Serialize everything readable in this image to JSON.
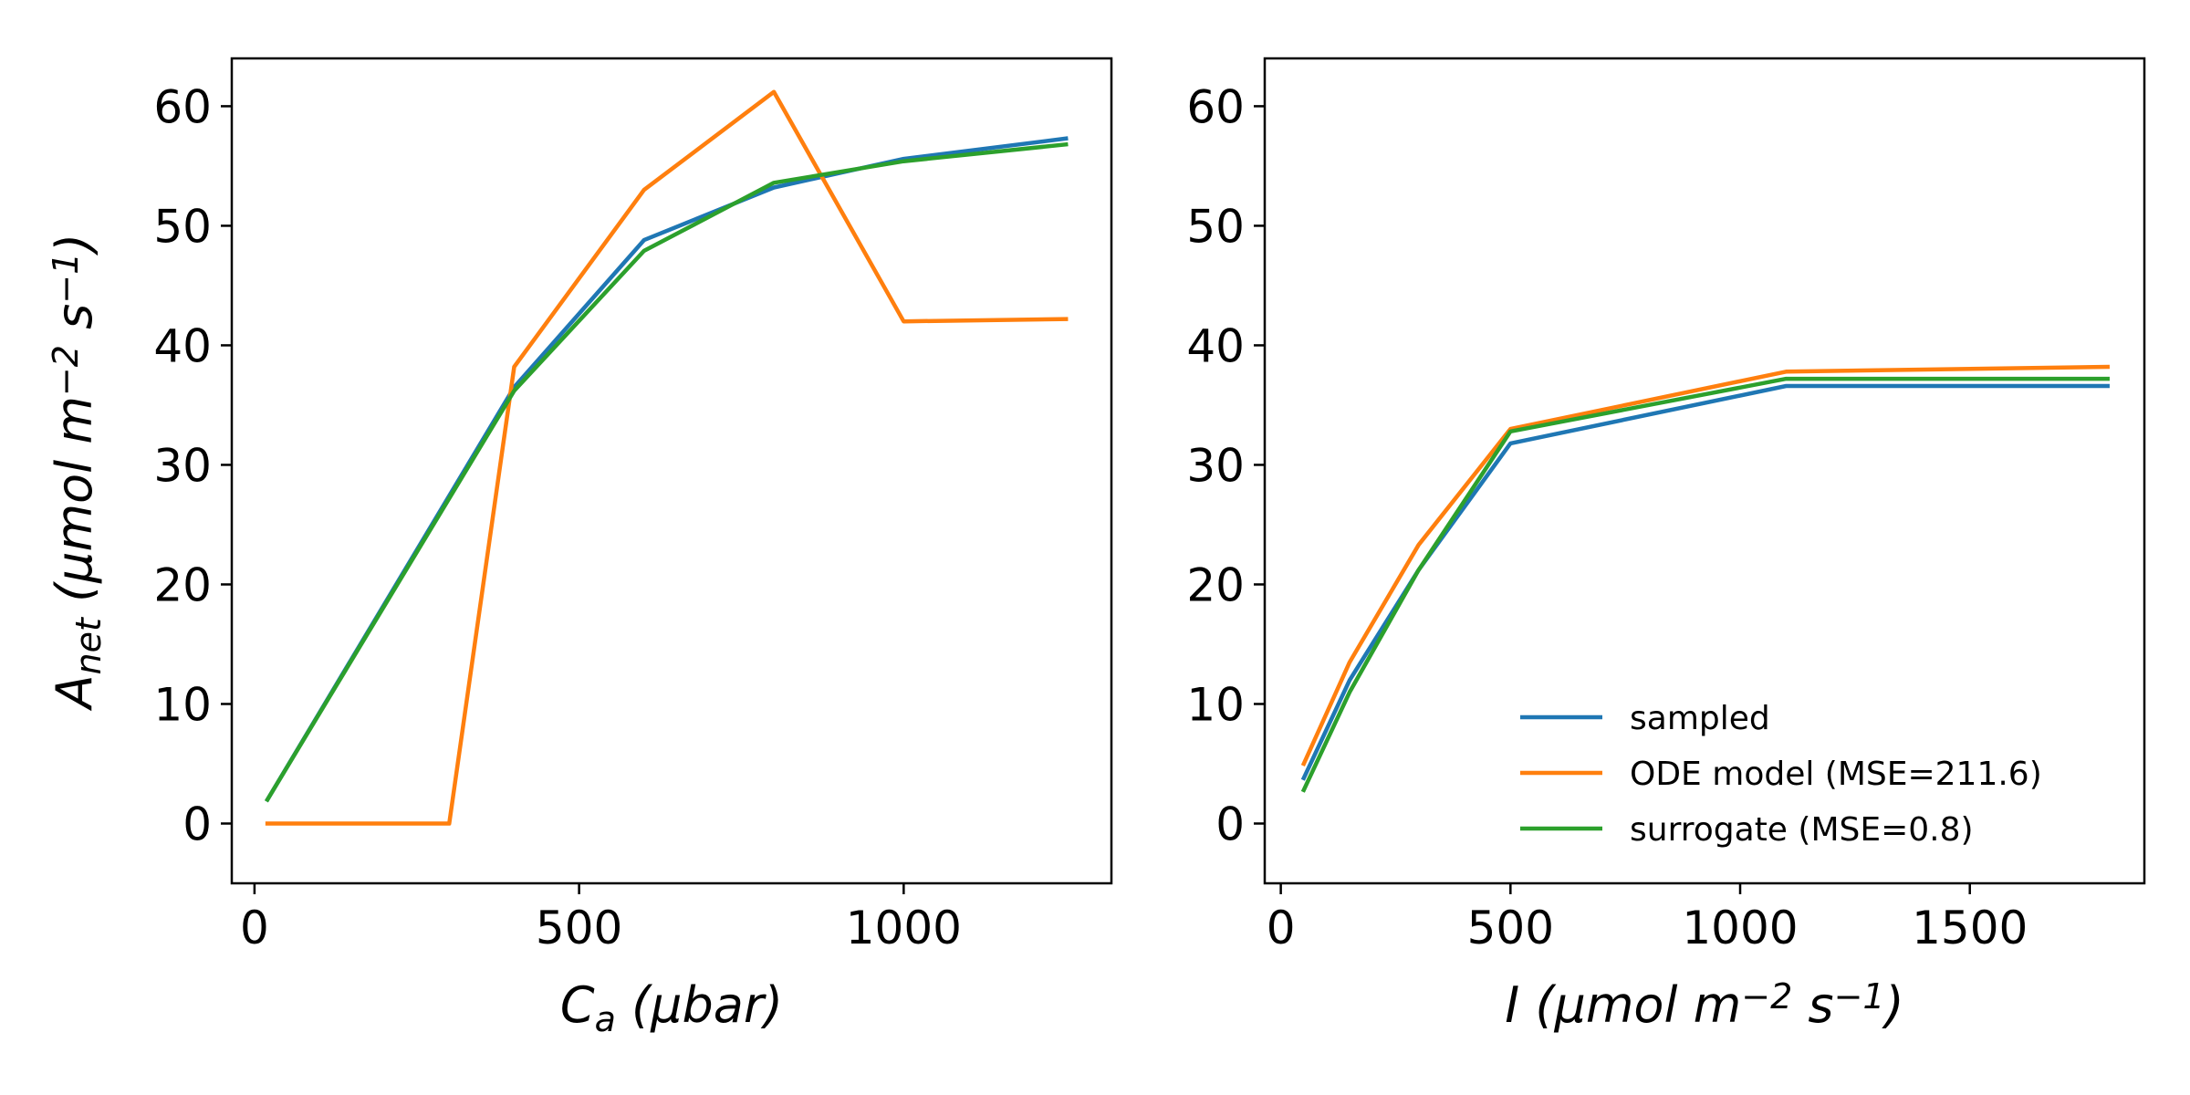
{
  "colors": {
    "sampled": "#1f77b4",
    "ode": "#ff7f0e",
    "surrogate": "#2ca02c"
  },
  "chart_data": [
    {
      "type": "line",
      "xlabel": {
        "base": "C",
        "sub": "a",
        "rest": " (μbar)"
      },
      "ylabel": {
        "base": "A",
        "sub": "net",
        "rest": " (μmol m",
        "exp1": "−2",
        "mid": " s",
        "exp2": "−1",
        "end": ")"
      },
      "xlim": [
        -35,
        1320
      ],
      "ylim": [
        -5,
        64
      ],
      "xticks": [
        0,
        500,
        1000
      ],
      "yticks": [
        0,
        10,
        20,
        30,
        40,
        50,
        60
      ],
      "series": [
        {
          "key": "sampled",
          "x": [
            20,
            400,
            600,
            800,
            1000,
            1250
          ],
          "y": [
            2,
            36.5,
            48.8,
            53.2,
            55.6,
            57.3
          ]
        },
        {
          "key": "ode",
          "x": [
            20,
            300,
            400,
            600,
            800,
            1000,
            1250
          ],
          "y": [
            0,
            0,
            38.2,
            53,
            61.2,
            42,
            42.2
          ]
        },
        {
          "key": "surrogate",
          "x": [
            20,
            400,
            600,
            800,
            1000,
            1250
          ],
          "y": [
            2,
            36.2,
            47.9,
            53.6,
            55.4,
            56.8
          ]
        }
      ]
    },
    {
      "type": "line",
      "xlabel": {
        "base": "I",
        "rest": " (μmol m",
        "exp1": "−2",
        "mid": " s",
        "exp2": "−1",
        "end": ")"
      },
      "ylabel": null,
      "xlim": [
        -35,
        1880
      ],
      "ylim": [
        -5,
        64
      ],
      "xticks": [
        0,
        500,
        1000,
        1500
      ],
      "yticks": [
        0,
        10,
        20,
        30,
        40,
        50,
        60
      ],
      "legend": {
        "placement": "lower-right",
        "entries": [
          {
            "key": "sampled",
            "label": "sampled"
          },
          {
            "key": "ode",
            "label": "ODE model (MSE=211.6)"
          },
          {
            "key": "surrogate",
            "label": "surrogate (MSE=0.8)"
          }
        ]
      },
      "series": [
        {
          "key": "sampled",
          "x": [
            50,
            150,
            300,
            500,
            1100,
            1800
          ],
          "y": [
            3.8,
            12,
            21.2,
            31.8,
            36.6,
            36.6
          ]
        },
        {
          "key": "ode",
          "x": [
            50,
            150,
            300,
            500,
            1100,
            1800
          ],
          "y": [
            5,
            13.5,
            23.3,
            33,
            37.8,
            38.2
          ]
        },
        {
          "key": "surrogate",
          "x": [
            50,
            150,
            300,
            500,
            1100,
            1800
          ],
          "y": [
            2.8,
            11,
            21.2,
            32.8,
            37.2,
            37.2
          ]
        }
      ]
    }
  ]
}
